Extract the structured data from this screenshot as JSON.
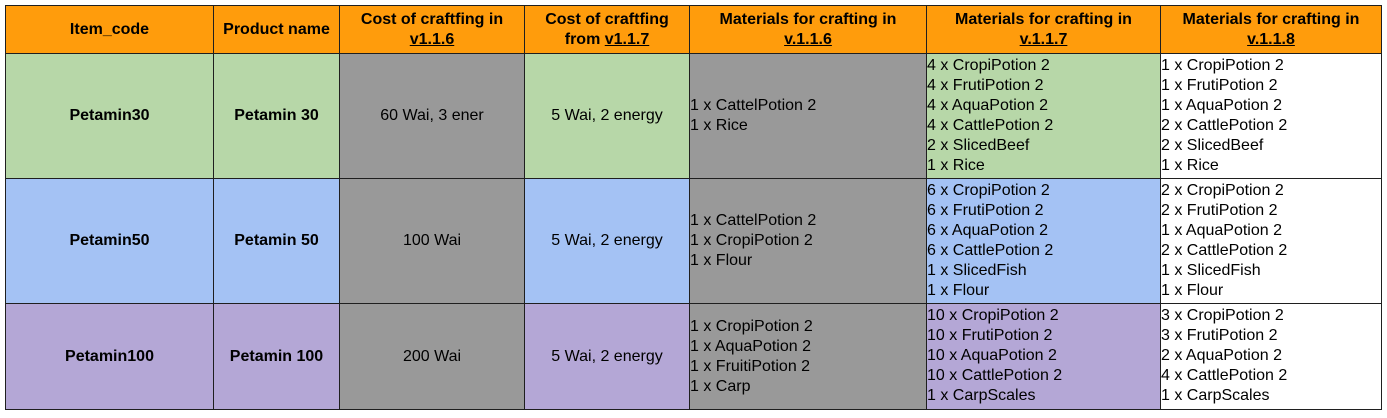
{
  "header": {
    "item_code": "Item_code",
    "product_name": "Product name",
    "cost_v116_a": "Cost of craftfing in",
    "cost_v116_b": "v1.1.6",
    "cost_v117_a": "Cost of craftfing",
    "cost_v117_b_pre": "from ",
    "cost_v117_b": "v1.1.7",
    "mat_v116_a": "Materials for crafting in",
    "mat_v116_b": "v.1.1.6",
    "mat_v117_a": "Materials for crafting in",
    "mat_v117_b": "v.1.1.7",
    "mat_v118_a": "Materials for crafting in",
    "mat_v118_b": "v.1.1.8"
  },
  "colors": {
    "header": "#ff9c0c",
    "row_petamin30": "#b7d7a8",
    "row_petamin50": "#a4c2f4",
    "row_petamin100": "#b4a7d6",
    "deprecated_gray": "#999999"
  },
  "rows": [
    {
      "item_code": "Petamin30",
      "product_name": "Petamin 30",
      "cost_v116": "60 Wai, 3 ener",
      "cost_v117": "5 Wai, 2 energy",
      "materials_v116": [
        "1 x CattelPotion 2",
        "1 x Rice"
      ],
      "materials_v117": [
        "4 x CropiPotion 2",
        "4 x FrutiPotion 2",
        "4 x AquaPotion 2",
        "4 x CattlePotion 2",
        "2 x SlicedBeef",
        "1 x Rice"
      ],
      "materials_v118": [
        "1 x CropiPotion 2",
        "1 x FrutiPotion 2",
        "1 x AquaPotion 2",
        "2 x CattlePotion 2",
        "2 x SlicedBeef",
        "1 x Rice"
      ]
    },
    {
      "item_code": "Petamin50",
      "product_name": "Petamin 50",
      "cost_v116": "100 Wai",
      "cost_v117": "5 Wai, 2 energy",
      "materials_v116": [
        "1 x CattelPotion 2",
        "1 x CropiPotion 2",
        "1 x Flour"
      ],
      "materials_v117": [
        "6 x CropiPotion 2",
        "6 x FrutiPotion 2",
        "6 x AquaPotion 2",
        "6 x CattlePotion 2",
        "1 x SlicedFish",
        "1 x Flour"
      ],
      "materials_v118": [
        "2 x CropiPotion 2",
        "2 x FrutiPotion 2",
        "1 x AquaPotion 2",
        "2 x CattlePotion 2",
        "1 x SlicedFish",
        "1 x Flour"
      ]
    },
    {
      "item_code": "Petamin100",
      "product_name": "Petamin 100",
      "cost_v116": "200 Wai",
      "cost_v117": "5 Wai, 2 energy",
      "materials_v116": [
        "1 x CropiPotion 2",
        "1 x AquaPotion 2",
        "1 x FruitiPotion 2",
        "1 x Carp"
      ],
      "materials_v117": [
        "10 x CropiPotion 2",
        "10 x FrutiPotion 2",
        "10 x AquaPotion 2",
        "10 x CattlePotion 2",
        "1 x CarpScales"
      ],
      "materials_v118": [
        "3 x CropiPotion 2",
        "3 x FrutiPotion 2",
        "2 x AquaPotion 2",
        "4 x CattlePotion 2",
        "1 x CarpScales"
      ]
    }
  ]
}
